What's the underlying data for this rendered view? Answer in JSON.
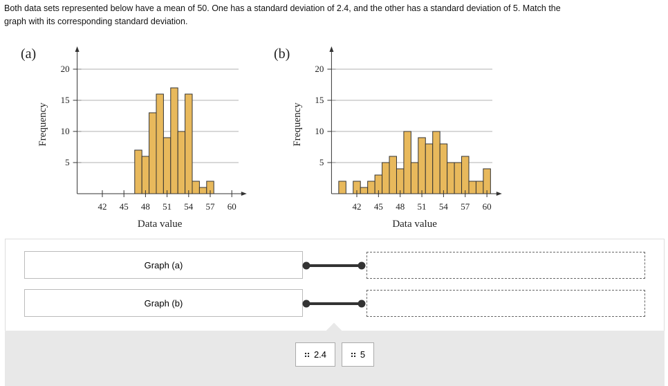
{
  "question": "Both data sets represented below have a mean of 50. One has a standard deviation of 2.4, and the other has a standard deviation of 5. Match the graph with its corresponding standard deviation.",
  "charts": [
    {
      "type": "histogram",
      "label": "(a)",
      "xlabel": "Data value",
      "ylabel": "Frequency",
      "bins": [
        46.5,
        47.5,
        48.5,
        49.5,
        50.5,
        51.5,
        52.5,
        53.5,
        54.5,
        55.5,
        56.5,
        57.5
      ],
      "values": [
        7,
        6,
        13,
        16,
        9,
        17,
        10,
        16,
        2,
        1,
        2
      ],
      "color": "#e8b95c",
      "xlim": [
        38.5,
        61.5
      ],
      "ylim": [
        0,
        23
      ],
      "xticks": [
        42,
        45,
        48,
        51,
        54,
        57,
        60
      ],
      "yticks": [
        5,
        10,
        15,
        20
      ],
      "grid": true
    },
    {
      "type": "histogram",
      "label": "(b)",
      "xlabel": "Data value",
      "ylabel": "Frequency",
      "bins": [
        39.5,
        40.5,
        41.5,
        42.5,
        43.5,
        44.5,
        45.5,
        46.5,
        47.5,
        48.5,
        49.5,
        50.5,
        51.5,
        52.5,
        53.5,
        54.5,
        55.5,
        56.5,
        57.5,
        58.5,
        59.5,
        60.5
      ],
      "values": [
        2,
        0,
        2,
        1,
        2,
        3,
        5,
        6,
        4,
        10,
        5,
        9,
        8,
        10,
        8,
        5,
        5,
        6,
        2,
        2,
        4
      ],
      "color": "#e8b95c",
      "xlim": [
        38.5,
        61.5
      ],
      "ylim": [
        0,
        23
      ],
      "xticks": [
        42,
        45,
        48,
        51,
        54,
        57,
        60
      ],
      "yticks": [
        5,
        10,
        15,
        20
      ],
      "grid": true
    }
  ],
  "matching": {
    "prompts": [
      "Graph (a)",
      "Graph (b)"
    ],
    "options": [
      "2.4",
      "5"
    ]
  }
}
